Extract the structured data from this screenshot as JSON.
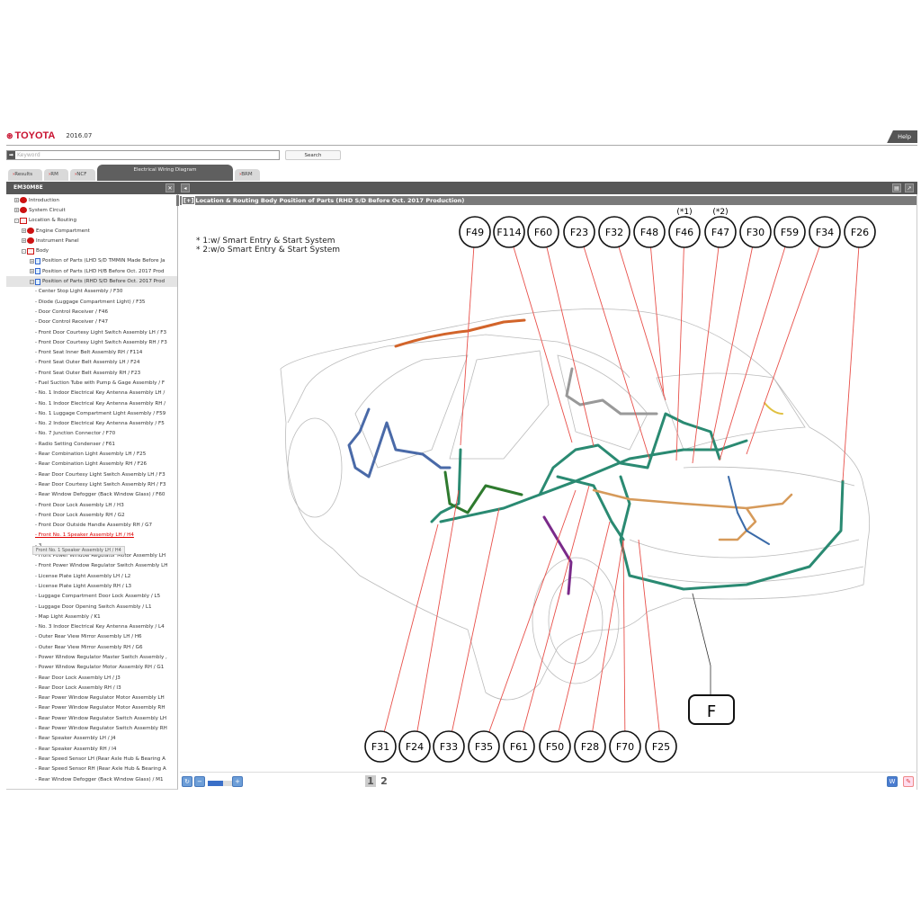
{
  "header": {
    "brand": "TOYOTA",
    "version": "2016.07",
    "help": "Help"
  },
  "search": {
    "placeholder": "Keyword",
    "button": "Search"
  },
  "tabs": [
    {
      "label": "Results"
    },
    {
      "label": "RM"
    },
    {
      "label": "NCF"
    },
    {
      "label": "Electrical Wiring Diagram",
      "active": true
    },
    {
      "label": "BRM"
    }
  ],
  "panel": {
    "id": "EM30M8E"
  },
  "tree": [
    {
      "l": 1,
      "icon": "book-closed",
      "pm": "+",
      "label": "Introduction"
    },
    {
      "l": 1,
      "icon": "book-closed",
      "pm": "+",
      "label": "System Circuit"
    },
    {
      "l": 1,
      "icon": "book-open",
      "pm": "-",
      "label": "Location & Routing"
    },
    {
      "l": 2,
      "icon": "book-closed",
      "pm": "+",
      "label": "Engine Compartment"
    },
    {
      "l": 2,
      "icon": "book-closed",
      "pm": "+",
      "label": "Instrument Panel"
    },
    {
      "l": 2,
      "icon": "book-open",
      "pm": "-",
      "label": "Body"
    },
    {
      "l": 3,
      "icon": "doc",
      "pm": "+",
      "label": "Position of Parts (LHD S/D TMMIN Made Before Ja"
    },
    {
      "l": 3,
      "icon": "doc",
      "pm": "+",
      "label": "Position of Parts (LHD H/B Before Oct. 2017 Prod"
    },
    {
      "l": 3,
      "icon": "doc",
      "pm": "-",
      "label": "Position of Parts (RHD S/D Before Oct. 2017 Prod",
      "selected": true
    },
    {
      "l": 4,
      "label": "- Center Stop Light Assembly / F30"
    },
    {
      "l": 4,
      "label": "- Diode (Luggage Compartment Light) / F35"
    },
    {
      "l": 4,
      "label": "- Door Control Receiver / F46"
    },
    {
      "l": 4,
      "label": "- Door Control Receiver / F47"
    },
    {
      "l": 4,
      "label": "- Front Door Courtesy Light Switch Assembly LH / F3"
    },
    {
      "l": 4,
      "label": "- Front Door Courtesy Light Switch Assembly RH / F3"
    },
    {
      "l": 4,
      "label": "- Front Seat Inner Belt Assembly RH / F114"
    },
    {
      "l": 4,
      "label": "- Front Seat Outer Belt Assembly LH / F24"
    },
    {
      "l": 4,
      "label": "- Front Seat Outer Belt Assembly RH / F23"
    },
    {
      "l": 4,
      "label": "- Fuel Suction Tube with Pump & Gage Assembly / F"
    },
    {
      "l": 4,
      "label": "- No. 1 Indoor Electrical Key Antenna Assembly LH /"
    },
    {
      "l": 4,
      "label": "- No. 1 Indoor Electrical Key Antenna Assembly RH /"
    },
    {
      "l": 4,
      "label": "- No. 1 Luggage Compartment Light Assembly / F59"
    },
    {
      "l": 4,
      "label": "- No. 2 Indoor Electrical Key Antenna Assembly / F5"
    },
    {
      "l": 4,
      "label": "- No. 7 Junction Connector / F70"
    },
    {
      "l": 4,
      "label": "- Radio Setting Condenser / F61"
    },
    {
      "l": 4,
      "label": "- Rear Combination Light Assembly LH / F25"
    },
    {
      "l": 4,
      "label": "- Rear Combination Light Assembly RH / F26"
    },
    {
      "l": 4,
      "label": "- Rear Door Courtesy Light Switch Assembly LH / F3"
    },
    {
      "l": 4,
      "label": "- Rear Door Courtesy Light Switch Assembly RH / F3"
    },
    {
      "l": 4,
      "label": "- Rear Window Defogger (Back Window Glass) / F60"
    },
    {
      "l": 4,
      "label": "- Front Door Lock Assembly LH / H3"
    },
    {
      "l": 4,
      "label": "- Front Door Lock Assembly RH / G2"
    },
    {
      "l": 4,
      "label": "- Front Door Outside Handle Assembly RH / G7"
    },
    {
      "l": 4,
      "label": "- Front No. 1 Speaker Assembly LH / H4",
      "hover": true
    },
    {
      "l": 4,
      "label": "-                                                       3"
    },
    {
      "l": 4,
      "label": "- Front Power Window Regulator Motor Assembly LH"
    },
    {
      "l": 4,
      "label": "- Front Power Window Regulator Switch Assembly LH"
    },
    {
      "l": 4,
      "label": "- License Plate Light Assembly LH / L2"
    },
    {
      "l": 4,
      "label": "- License Plate Light Assembly RH / L3"
    },
    {
      "l": 4,
      "label": "- Luggage Compartment Door Lock Assembly / L5"
    },
    {
      "l": 4,
      "label": "- Luggage Door Opening Switch Assembly / L1"
    },
    {
      "l": 4,
      "label": "- Map Light Assembly / K1"
    },
    {
      "l": 4,
      "label": "- No. 3 Indoor Electrical Key Antenna Assembly / L4"
    },
    {
      "l": 4,
      "label": "- Outer Rear View Mirror Assembly LH / H6"
    },
    {
      "l": 4,
      "label": "- Outer Rear View Mirror Assembly RH / G6"
    },
    {
      "l": 4,
      "label": "- Power Window Regulator Master Switch Assembly ,"
    },
    {
      "l": 4,
      "label": "- Power Window Regulator Motor Assembly RH / G1"
    },
    {
      "l": 4,
      "label": "- Rear Door Lock Assembly LH / J3"
    },
    {
      "l": 4,
      "label": "- Rear Door Lock Assembly RH / I3"
    },
    {
      "l": 4,
      "label": "- Rear Power Window Regulator Motor Assembly LH"
    },
    {
      "l": 4,
      "label": "- Rear Power Window Regulator Motor Assembly RH"
    },
    {
      "l": 4,
      "label": "- Rear Power Window Regulator Switch Assembly LH"
    },
    {
      "l": 4,
      "label": "- Rear Power Window Regulator Switch Assembly RH"
    },
    {
      "l": 4,
      "label": "- Rear Speaker Assembly LH / J4"
    },
    {
      "l": 4,
      "label": "- Rear Speaker Assembly RH / I4"
    },
    {
      "l": 4,
      "label": "- Rear Speed Sensor LH (Rear Axle Hub & Bearing A"
    },
    {
      "l": 4,
      "label": "- Rear Speed Sensor RH (Rear Axle Hub & Bearing A"
    },
    {
      "l": 4,
      "label": "- Rear Window Defogger (Back Window Glass) / M1"
    }
  ],
  "tooltip": "Front No. 1 Speaker Assembly LH / H4",
  "content": {
    "title": "Location & Routing  Body  Position of Parts (RHD S/D Before Oct. 2017 Production)",
    "expand": "+"
  },
  "diagram": {
    "notes": [
      "* 1:w/ Smart Entry & Start System",
      "* 2:w/o Smart Entry & Start System"
    ],
    "top_callouts": [
      {
        "label": "F49"
      },
      {
        "label": "F114"
      },
      {
        "label": "F60"
      },
      {
        "label": "F23"
      },
      {
        "label": "F32"
      },
      {
        "label": "F48"
      },
      {
        "label": "F46",
        "note": "(*1)"
      },
      {
        "label": "F47",
        "note": "(*2)"
      },
      {
        "label": "F30"
      },
      {
        "label": "F59"
      },
      {
        "label": "F34"
      },
      {
        "label": "F26"
      }
    ],
    "bottom_callouts": [
      {
        "label": "F31"
      },
      {
        "label": "F24"
      },
      {
        "label": "F33"
      },
      {
        "label": "F35"
      },
      {
        "label": "F61"
      },
      {
        "label": "F50"
      },
      {
        "label": "F28"
      },
      {
        "label": "F70"
      },
      {
        "label": "F25"
      }
    ],
    "harness_label": "F",
    "colors": {
      "leader": "#e8504a",
      "main_harness": "#2a8a72",
      "roof_harness": "#d2642a",
      "door_harness": "#4a6aa8",
      "floor_harness": "#2e7a2e",
      "trunk_harness": "#d69a5a",
      "purple_harness": "#7a2a8a",
      "gray_harness": "#999999",
      "yellow_harness": "#e0c040"
    }
  },
  "footer": {
    "pages": [
      "1",
      "2"
    ],
    "current_page": "1"
  }
}
